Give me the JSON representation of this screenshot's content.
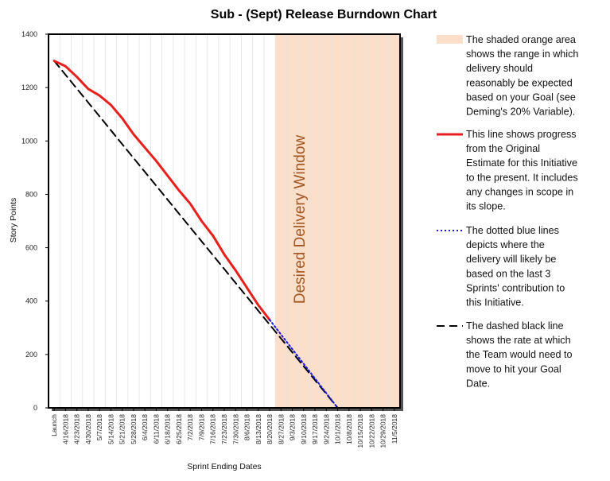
{
  "chart_data": {
    "type": "line",
    "title": "Sub -  (Sept) Release Burndown Chart",
    "xlabel": "Sprint Ending Dates",
    "ylabel": "Story Points",
    "ylim": [
      0,
      1400
    ],
    "yticks": [
      0,
      200,
      400,
      600,
      800,
      1000,
      1200,
      1400
    ],
    "categories": [
      "Launch",
      "4/16/2018",
      "4/23/2018",
      "4/30/2018",
      "5/7/2018",
      "5/14/2018",
      "5/21/2018",
      "5/28/2018",
      "6/4/2018",
      "6/11/2018",
      "6/18/2018",
      "6/25/2018",
      "7/2/2018",
      "7/9/2018",
      "7/16/2018",
      "7/23/2018",
      "7/30/2018",
      "8/6/2018",
      "8/13/2018",
      "8/20/2018",
      "8/27/2018",
      "9/3/2018",
      "9/10/2018",
      "9/17/2018",
      "9/24/2018",
      "10/1/2018",
      "10/8/2018",
      "10/15/2018",
      "10/22/2018",
      "10/29/2018",
      "11/5/2018"
    ],
    "grid": "vertical",
    "shaded_window": {
      "label": "Desired Delivery Window",
      "start_category": "8/20/2018",
      "end_category": "11/5/2018",
      "color": "#fbdfca"
    },
    "series": [
      {
        "role": "progress",
        "style": "solid",
        "color": "#e8201d",
        "x": [
          "Launch",
          "4/16/2018",
          "4/23/2018",
          "4/30/2018",
          "5/7/2018",
          "5/14/2018",
          "5/21/2018",
          "5/28/2018",
          "6/4/2018",
          "6/11/2018",
          "6/18/2018",
          "6/25/2018",
          "7/2/2018",
          "7/9/2018",
          "7/16/2018",
          "7/23/2018",
          "7/30/2018",
          "8/6/2018",
          "8/13/2018",
          "8/20/2018"
        ],
        "values": [
          1300,
          1280,
          1240,
          1195,
          1170,
          1135,
          1085,
          1025,
          975,
          925,
          870,
          815,
          765,
          700,
          645,
          575,
          515,
          450,
          385,
          330
        ]
      },
      {
        "role": "goal-rate",
        "style": "dashed",
        "color": "#000000",
        "x": [
          "Launch",
          "10/1/2018"
        ],
        "values": [
          1300,
          0
        ]
      },
      {
        "role": "forecast",
        "style": "dotted",
        "color": "#1a1adb",
        "x": [
          "8/20/2018",
          "10/1/2018"
        ],
        "values": [
          330,
          0
        ]
      }
    ],
    "legend": {
      "placement": "right",
      "entries": [
        {
          "marker": "shaded",
          "color": "#fbdfca",
          "text": "The shaded orange area shows the range in which delivery should reasonably be expected based on your Goal (see Deming's 20% Variable).",
          "lines": [
            "The shaded orange area",
            "shows the range in which",
            "delivery should",
            "reasonably be expected",
            "based on your Goal (see",
            "Deming's 20% Variable)."
          ]
        },
        {
          "marker": "solid",
          "color": "#e8201d",
          "text": "This line shows progress from the Original Estimate for this Initiative to the present. It includes any changes in scope in its slope.",
          "lines": [
            "This line shows progress",
            "from the Original",
            "Estimate for this Initiative",
            "to the present. It includes",
            "any changes in scope in",
            "its slope."
          ]
        },
        {
          "marker": "dotted",
          "color": "#1a1adb",
          "text": "The dotted blue lines depicts where the delivery will likely be based on the last 3 Sprints' contribution to this Initiative.",
          "lines": [
            "The dotted blue lines",
            "depicts where the",
            "delivery will likely be",
            "based on the last 3",
            "Sprints' contribution to",
            "this Initiative."
          ]
        },
        {
          "marker": "dashed",
          "color": "#000000",
          "text": "The dashed black line shows the rate at which the Team would need to move to hit your Goal Date.",
          "lines": [
            "The dashed black line",
            "shows the rate at which",
            "the Team would need to",
            "move to hit your Goal",
            "Date."
          ]
        }
      ]
    }
  }
}
